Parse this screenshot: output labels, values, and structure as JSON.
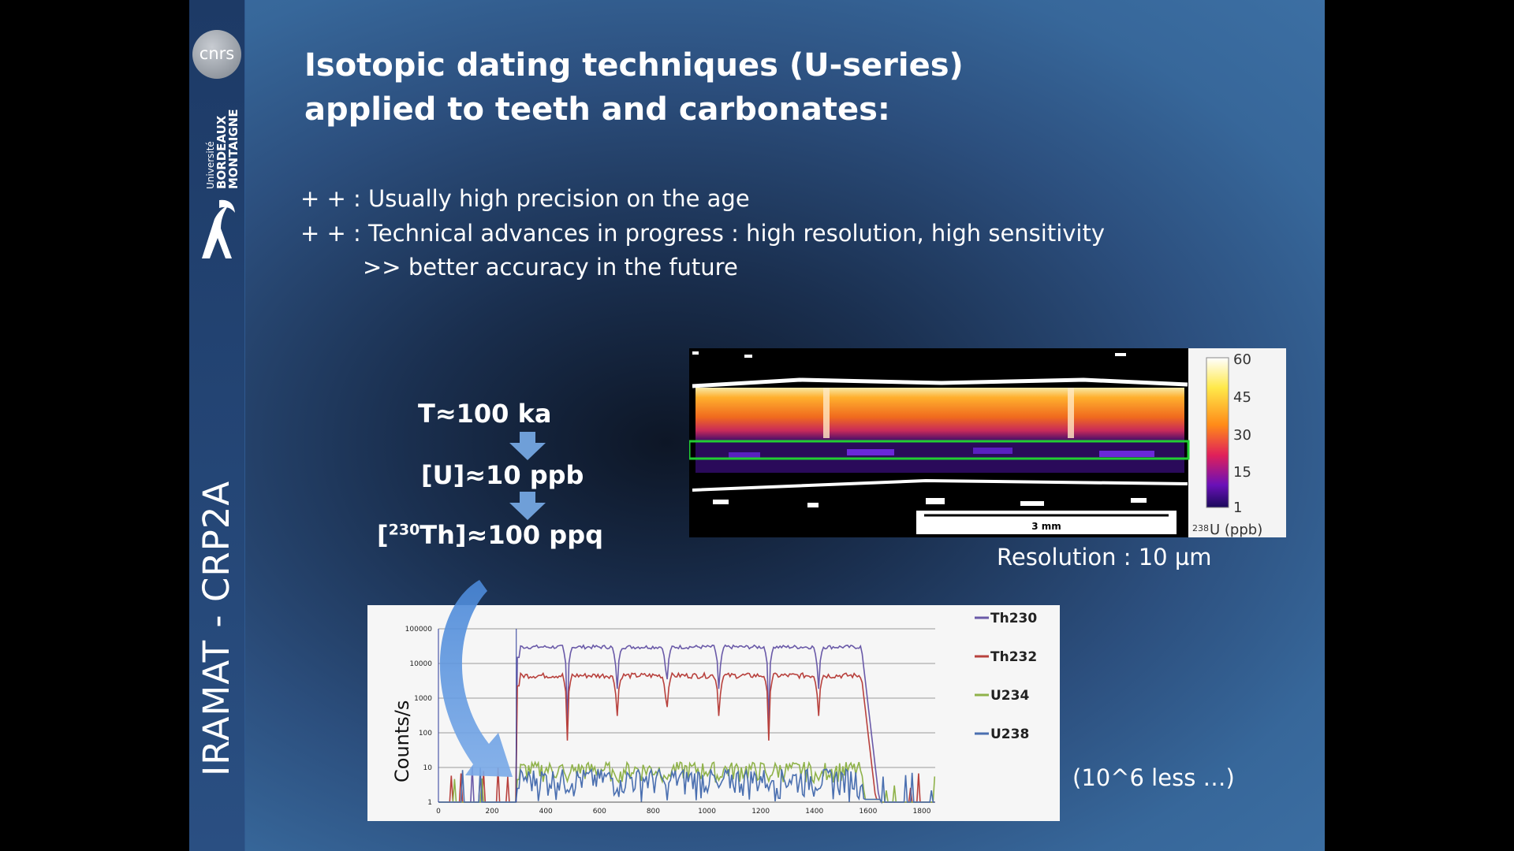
{
  "sidebar": {
    "cnrs_logo": "cnrs",
    "univ_small": "Université",
    "univ_line1": "BORDEAUX",
    "univ_line2": "MONTAIGNE",
    "vertical_label": "IRAMAT - CRP2A"
  },
  "title": "Isotopic dating techniques (U-series) applied to teeth and carbonates:",
  "bullets": [
    "+ + :  Usually high precision on the age",
    "+ + :  Technical advances in progress : high resolution, high sensitivity",
    ">>  better accuracy in the future"
  ],
  "flow": {
    "step1": "T≈100 ka",
    "step2": "[U]≈10 ppb",
    "step3_pre": "[",
    "step3_sup": "230",
    "step3_post": "Th]≈100 ppq"
  },
  "heatmap": {
    "scale_ticks": [
      "60",
      "45",
      "30",
      "15",
      "1"
    ],
    "scale_label_sup": "238",
    "scale_label": "U (ppb)",
    "scalebar_label": "3 mm"
  },
  "resolution_text": "Resolution : 10 µm",
  "less_text": "(10^6 less …)",
  "chart_data": {
    "type": "line",
    "ylabel": "Counts/s",
    "yscale": "log",
    "y_ticks": [
      "100000",
      "10000",
      "1000",
      "100",
      "10",
      "1"
    ],
    "x_ticks": [
      "0",
      "200",
      "400",
      "600",
      "800",
      "1000",
      "1200",
      "1400",
      "1600",
      "1800"
    ],
    "xlim": [
      0,
      1850
    ],
    "ylim": [
      1,
      100000
    ],
    "legend_position": "right",
    "series": [
      {
        "name": "Th230",
        "color": "#6a5aa8"
      },
      {
        "name": "Th232",
        "color": "#b8413d"
      },
      {
        "name": "U234",
        "color": "#8fb24a"
      },
      {
        "name": "U238",
        "color": "#4a6fb0"
      }
    ]
  }
}
